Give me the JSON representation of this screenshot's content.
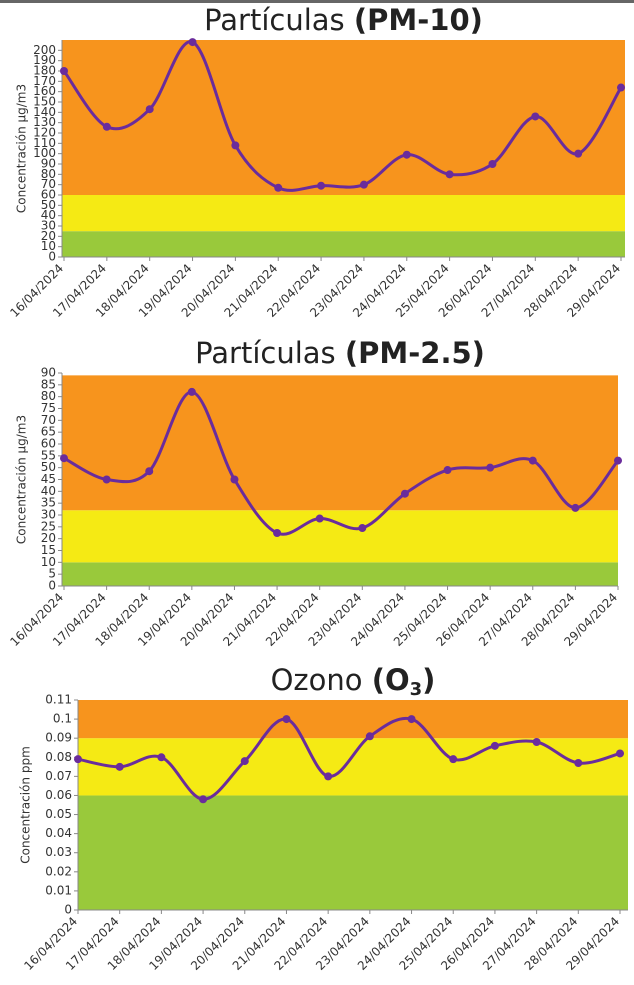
{
  "chart_data": [
    {
      "type": "line",
      "title": "Partículas",
      "title_bold": "(PM-10)",
      "y_label": "Concentración µg/m3",
      "categories": [
        "16/04/2024",
        "17/04/2024",
        "18/04/2024",
        "19/04/2024",
        "20/04/2024",
        "21/04/2024",
        "22/04/2024",
        "23/04/2024",
        "24/04/2024",
        "25/04/2024",
        "26/04/2024",
        "27/04/2024",
        "28/04/2024",
        "29/04/2024"
      ],
      "values": [
        180,
        126,
        143,
        208,
        108,
        67,
        69,
        70,
        99,
        80,
        90,
        136,
        100,
        164
      ],
      "color": "#6a2c9c",
      "ylim": [
        0,
        210
      ],
      "yticks": [
        0,
        10,
        20,
        30,
        40,
        50,
        60,
        70,
        80,
        90,
        100,
        110,
        120,
        130,
        140,
        150,
        160,
        170,
        180,
        190,
        200
      ],
      "bands": [
        {
          "from": 0,
          "to": 25,
          "color": "#99c93b"
        },
        {
          "from": 25,
          "to": 60,
          "color": "#f5ea14"
        },
        {
          "from": 60,
          "to": 210,
          "color": "#f7941d"
        }
      ]
    },
    {
      "type": "line",
      "title": "Partículas",
      "title_bold": "(PM-2.5)",
      "y_label": "Concentración µg/m3",
      "categories": [
        "16/04/2024",
        "17/04/2024",
        "18/04/2024",
        "19/04/2024",
        "20/04/2024",
        "21/04/2024",
        "22/04/2024",
        "23/04/2024",
        "24/04/2024",
        "25/04/2024",
        "26/04/2024",
        "27/04/2024",
        "28/04/2024",
        "29/04/2024"
      ],
      "values": [
        54,
        45,
        48.5,
        82,
        45,
        22.4,
        28.5,
        24.5,
        39,
        49,
        50,
        53,
        33,
        53
      ],
      "color": "#6a2c9c",
      "ylim": [
        0,
        90
      ],
      "yticks": [
        0,
        5,
        10,
        15,
        20,
        25,
        30,
        35,
        40,
        45,
        50,
        55,
        60,
        65,
        70,
        75,
        80,
        85,
        90
      ],
      "bands": [
        {
          "from": 0,
          "to": 10,
          "color": "#99c93b"
        },
        {
          "from": 10,
          "to": 32,
          "color": "#f5ea14"
        },
        {
          "from": 32,
          "to": 89,
          "color": "#f7941d"
        }
      ]
    },
    {
      "type": "line",
      "title": "Ozono",
      "title_bold": "(O",
      "title_sub": "3",
      "title_end": ")",
      "y_label": "Concentración ppm",
      "categories": [
        "16/04/2024",
        "17/04/2024",
        "18/04/2024",
        "19/04/2024",
        "20/04/2024",
        "21/04/2024",
        "22/04/2024",
        "23/04/2024",
        "24/04/2024",
        "25/04/2024",
        "26/04/2024",
        "27/04/2024",
        "28/04/2024",
        "29/04/2024"
      ],
      "values": [
        0.079,
        0.075,
        0.08,
        0.058,
        0.078,
        0.1,
        0.07,
        0.091,
        0.1,
        0.079,
        0.086,
        0.088,
        0.077,
        0.082
      ],
      "color": "#6a2c9c",
      "ylim": [
        0,
        0.11
      ],
      "yticks": [
        0,
        0.01,
        0.02,
        0.03,
        0.04,
        0.05,
        0.06,
        0.07,
        0.08,
        0.09,
        0.1,
        0.11
      ],
      "bands": [
        {
          "from": 0,
          "to": 0.06,
          "color": "#99c93b"
        },
        {
          "from": 0.06,
          "to": 0.09,
          "color": "#f5ea14"
        },
        {
          "from": 0.09,
          "to": 0.11,
          "color": "#f7941d"
        }
      ]
    }
  ]
}
